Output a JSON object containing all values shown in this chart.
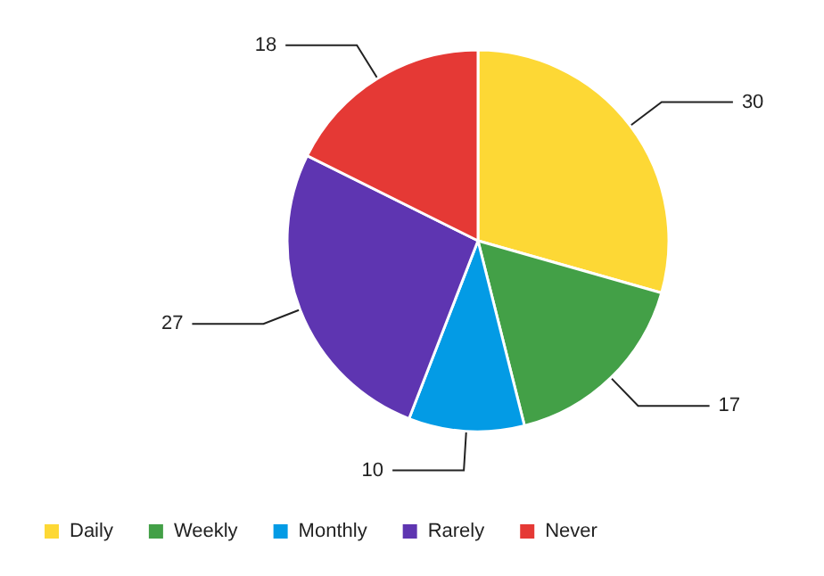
{
  "chart_data": {
    "type": "pie",
    "categories": [
      "Daily",
      "Weekly",
      "Monthly",
      "Rarely",
      "Never"
    ],
    "values": [
      30,
      17,
      10,
      27,
      18
    ],
    "colors": [
      "#fdd835",
      "#43a047",
      "#039be5",
      "#5e35b1",
      "#e53935"
    ],
    "data_labels": true,
    "legend": "bottom left"
  }
}
